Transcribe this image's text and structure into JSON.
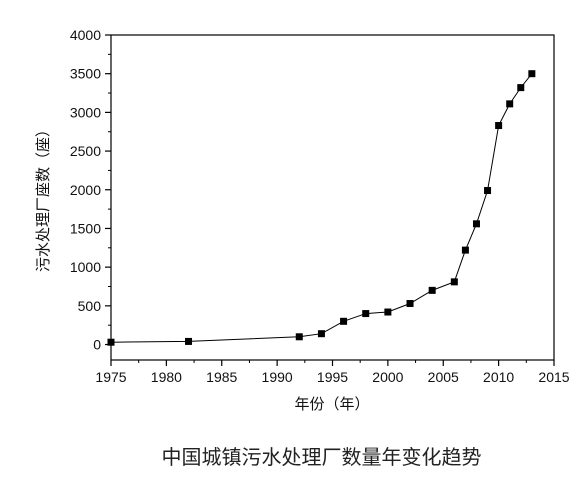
{
  "chart_data": {
    "type": "line",
    "title": "中国城镇污水处理厂数量年变化趋势",
    "xlabel": "年份（年）",
    "ylabel": "污水处理厂座数（座）",
    "xlim": [
      1975,
      2015
    ],
    "ylim": [
      -200,
      4000
    ],
    "xticks": [
      1975,
      1980,
      1985,
      1990,
      1995,
      2000,
      2005,
      2010,
      2015
    ],
    "yticks": [
      0,
      500,
      1000,
      1500,
      2000,
      2500,
      3000,
      3500,
      4000
    ],
    "marker": "square",
    "line_color": "#000000",
    "grid": false,
    "series": [
      {
        "x": [
          1975,
          1982,
          1992,
          1994,
          1996,
          1998,
          2000,
          2002,
          2004,
          2006,
          2007,
          2008,
          2009,
          2010,
          2011,
          2012,
          2013
        ],
        "y": [
          30,
          40,
          100,
          140,
          300,
          400,
          420,
          530,
          700,
          810,
          1220,
          1560,
          1990,
          2830,
          3110,
          3320,
          3500
        ]
      }
    ]
  }
}
